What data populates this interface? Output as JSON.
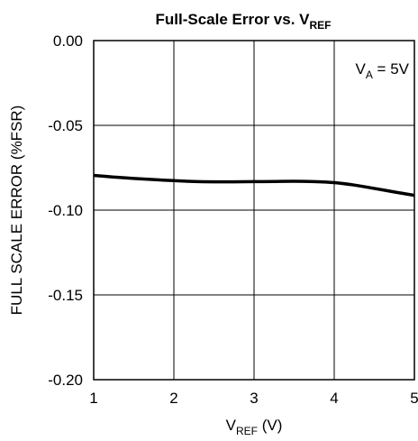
{
  "chart_data": {
    "type": "line",
    "title": {
      "main": "Full-Scale Error vs. V",
      "sub": "REF"
    },
    "xlabel": {
      "main": "V",
      "sub": "REF",
      "suffix": " (V)"
    },
    "ylabel": "FULL SCALE ERROR (%FSR)",
    "xlim": [
      1,
      5
    ],
    "ylim": [
      -0.2,
      0.0
    ],
    "xticks": [
      "1",
      "2",
      "3",
      "4",
      "5"
    ],
    "yticks": [
      "0.00",
      "-0.05",
      "-0.10",
      "-0.15",
      "-0.20"
    ],
    "grid": true,
    "annotation": {
      "main": "V",
      "sub": "A",
      "suffix": " = 5V",
      "placement": "top-right"
    },
    "series": [
      {
        "color": "#000000",
        "x": [
          1.0,
          1.25,
          1.5,
          1.75,
          2.0,
          2.25,
          2.5,
          2.75,
          3.0,
          3.25,
          3.5,
          3.75,
          4.0,
          4.25,
          4.5,
          4.75,
          5.0
        ],
        "y": [
          -0.0795,
          -0.0805,
          -0.0813,
          -0.082,
          -0.0826,
          -0.0831,
          -0.0833,
          -0.0833,
          -0.0832,
          -0.0831,
          -0.083,
          -0.0832,
          -0.0838,
          -0.0852,
          -0.0872,
          -0.0893,
          -0.0913
        ]
      }
    ]
  }
}
